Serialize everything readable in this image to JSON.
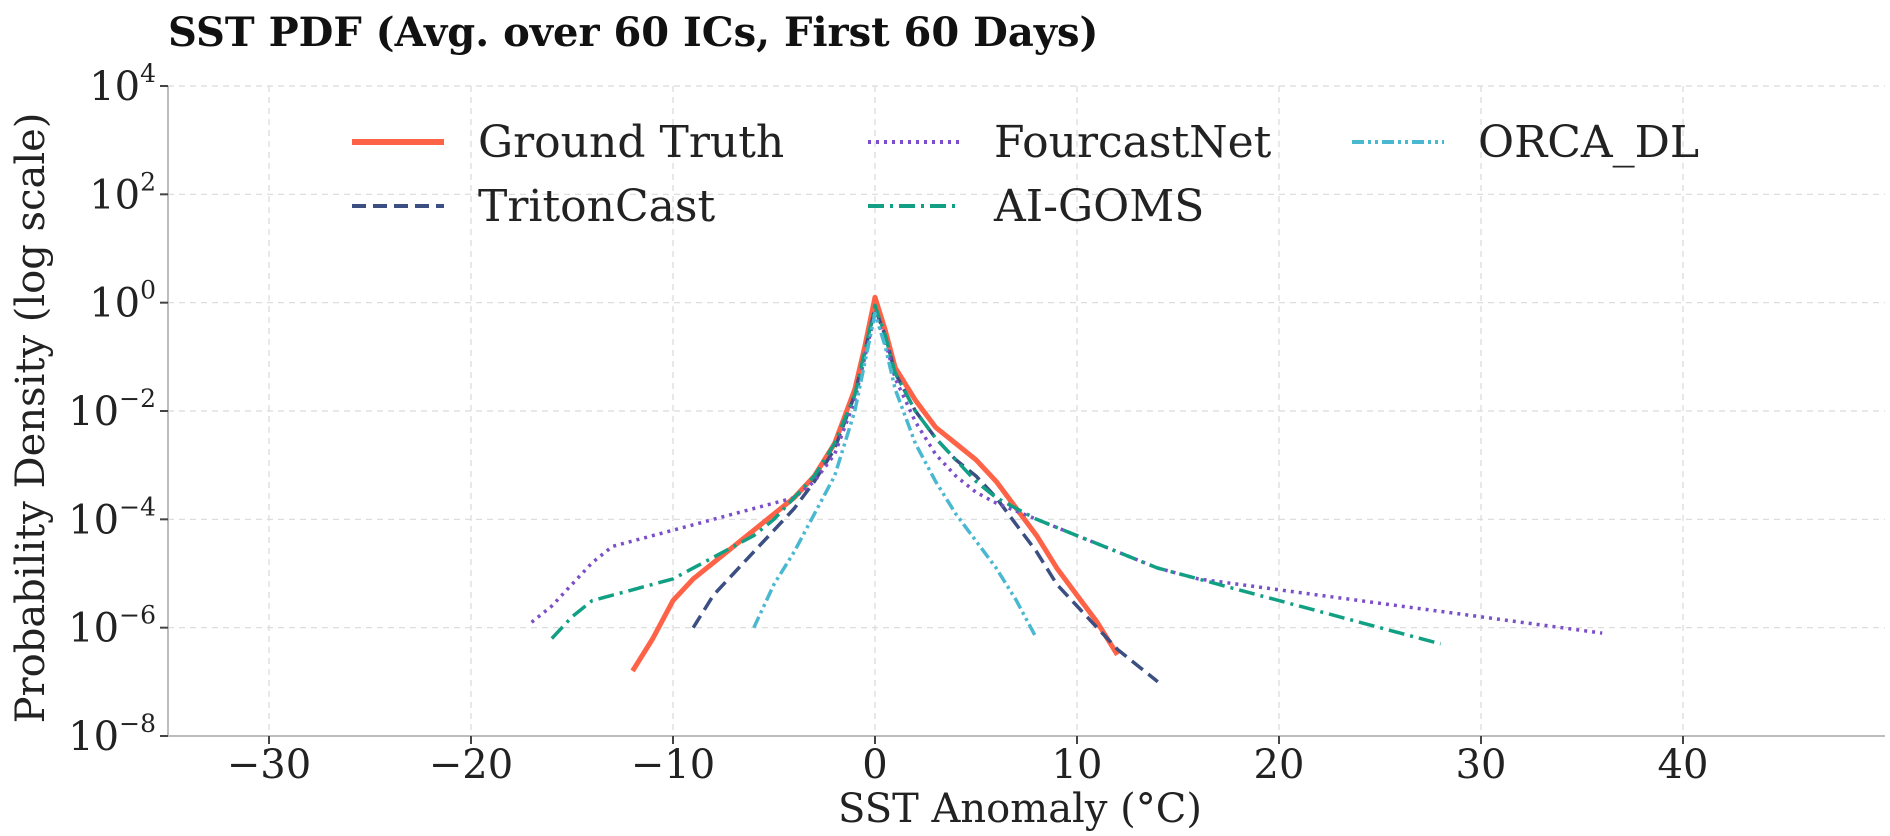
{
  "chart_data": {
    "type": "line",
    "title": "SST PDF (Avg. over 60 ICs, First 60 Days)",
    "xlabel": "SST Anomaly (°C)",
    "ylabel": "Probability Density (log scale)",
    "xlim": [
      -35,
      50
    ],
    "ylim_log10": [
      -8,
      4
    ],
    "yscale": "log",
    "grid": true,
    "legend_position": "top-center",
    "x_ticks": [
      -30,
      -20,
      -10,
      0,
      10,
      20,
      30,
      40
    ],
    "x_tick_labels": [
      "−30",
      "−20",
      "−10",
      "0",
      "10",
      "20",
      "30",
      "40"
    ],
    "y_ticks": [
      {
        "base": "10",
        "exp": "4"
      },
      {
        "base": "10",
        "exp": "2"
      },
      {
        "base": "10",
        "exp": "0"
      },
      {
        "base": "10",
        "exp": "−2"
      },
      {
        "base": "10",
        "exp": "−4"
      },
      {
        "base": "10",
        "exp": "−6"
      },
      {
        "base": "10",
        "exp": "−8"
      }
    ],
    "series": [
      {
        "name": "Ground Truth",
        "color": "#ff6347",
        "style": "solid",
        "x": [
          -12,
          -11,
          -10,
          -9,
          -8,
          -7,
          -6,
          -5,
          -4,
          -3,
          -2,
          -1,
          -0.5,
          0,
          0.5,
          1,
          2,
          3,
          4,
          5,
          6,
          7,
          8,
          9,
          10,
          11,
          12
        ],
        "log10_y": [
          -6.8,
          -6.2,
          -5.5,
          -5.1,
          -4.8,
          -4.5,
          -4.2,
          -3.9,
          -3.6,
          -3.2,
          -2.6,
          -1.6,
          -0.8,
          0.1,
          -0.5,
          -1.2,
          -1.8,
          -2.3,
          -2.6,
          -2.9,
          -3.3,
          -3.8,
          -4.3,
          -4.9,
          -5.4,
          -5.9,
          -6.5
        ]
      },
      {
        "name": "TritonCast",
        "color": "#3b4f82",
        "style": "dashed",
        "x": [
          -9,
          -8,
          -7,
          -6,
          -5,
          -4,
          -3,
          -2,
          -1,
          -0.5,
          0,
          0.5,
          1,
          2,
          3,
          4,
          5,
          6,
          7,
          8,
          9,
          10,
          11,
          12,
          13,
          14
        ],
        "log10_y": [
          -6.0,
          -5.4,
          -5.0,
          -4.6,
          -4.2,
          -3.8,
          -3.3,
          -2.7,
          -1.7,
          -0.9,
          -0.1,
          -0.6,
          -1.3,
          -2.0,
          -2.5,
          -2.9,
          -3.2,
          -3.6,
          -4.1,
          -4.6,
          -5.2,
          -5.6,
          -6.0,
          -6.4,
          -6.7,
          -7.0
        ]
      },
      {
        "name": "FourcastNet",
        "color": "#7b4fc9",
        "style": "dotted",
        "x": [
          -17,
          -16,
          -15,
          -14,
          -13,
          -12,
          -11,
          -10,
          -9,
          -8,
          -7,
          -6,
          -5,
          -4,
          -3,
          -2,
          -1,
          -0.5,
          0,
          0.5,
          1,
          2,
          3,
          4,
          5,
          6,
          8,
          10,
          12,
          14,
          16,
          18,
          20,
          22,
          24,
          26,
          28,
          30,
          32,
          34,
          36
        ],
        "log10_y": [
          -5.9,
          -5.6,
          -5.2,
          -4.8,
          -4.5,
          -4.4,
          -4.3,
          -4.2,
          -4.1,
          -4.0,
          -3.9,
          -3.8,
          -3.7,
          -3.6,
          -3.3,
          -2.8,
          -1.8,
          -1.0,
          -0.2,
          -0.7,
          -1.4,
          -2.2,
          -2.8,
          -3.2,
          -3.5,
          -3.7,
          -4.0,
          -4.3,
          -4.6,
          -4.9,
          -5.1,
          -5.2,
          -5.3,
          -5.4,
          -5.5,
          -5.6,
          -5.7,
          -5.8,
          -5.9,
          -6.0,
          -6.1
        ]
      },
      {
        "name": "AI-GOMS",
        "color": "#12a085",
        "style": "dashdot",
        "x": [
          -16,
          -15,
          -14,
          -13,
          -12,
          -11,
          -10,
          -9,
          -8,
          -7,
          -6,
          -5,
          -4,
          -3,
          -2,
          -1,
          -0.5,
          0,
          0.5,
          1,
          2,
          3,
          4,
          5,
          6,
          7,
          8,
          10,
          12,
          14,
          16,
          18,
          20,
          22,
          24,
          26,
          28
        ],
        "log10_y": [
          -6.2,
          -5.8,
          -5.5,
          -5.4,
          -5.3,
          -5.2,
          -5.1,
          -4.9,
          -4.7,
          -4.5,
          -4.3,
          -4.0,
          -3.6,
          -3.2,
          -2.6,
          -1.7,
          -0.9,
          -0.05,
          -0.6,
          -1.3,
          -2.0,
          -2.5,
          -2.9,
          -3.3,
          -3.6,
          -3.8,
          -4.0,
          -4.3,
          -4.6,
          -4.9,
          -5.1,
          -5.3,
          -5.5,
          -5.7,
          -5.9,
          -6.1,
          -6.3
        ]
      },
      {
        "name": "ORCA_DL",
        "color": "#4ab8d0",
        "style": "dashdotdot",
        "x": [
          -6,
          -5,
          -4,
          -3,
          -2,
          -1,
          -0.5,
          0,
          0.5,
          1,
          2,
          3,
          4,
          5,
          6,
          7,
          8
        ],
        "log10_y": [
          -6.0,
          -5.2,
          -4.6,
          -3.9,
          -3.2,
          -2.0,
          -1.1,
          -0.2,
          -0.8,
          -1.6,
          -2.6,
          -3.3,
          -3.9,
          -4.4,
          -4.9,
          -5.5,
          -6.2
        ]
      }
    ]
  }
}
